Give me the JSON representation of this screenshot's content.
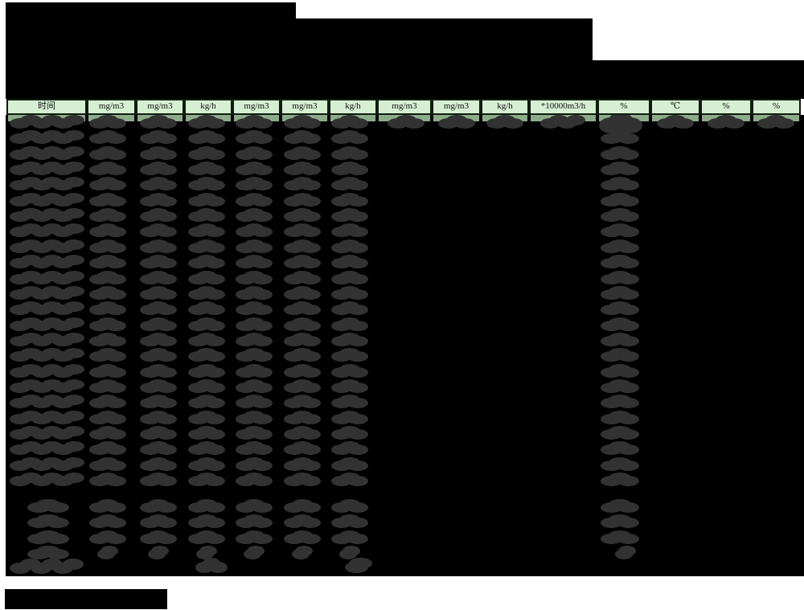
{
  "header": {
    "columns": [
      "时间",
      "mg/m3",
      "mg/m3",
      "kg/h",
      "mg/m3",
      "mg/m3",
      "kg/h",
      "mg/m3",
      "mg/m3",
      "kg/h",
      "*10000m3/h",
      "%",
      "℃",
      "%",
      "%"
    ]
  },
  "table": {
    "main_row_count": 24,
    "summary_row_count": 4,
    "has_final_total_row": true,
    "note": "all cell values, titles and footer text are blacked-out / redacted in the source image"
  },
  "colors": {
    "page_bg": "#ffffff",
    "redaction_black": "#000000",
    "blob_gray": "#323232",
    "header_bg": "#d6eed2",
    "header_border": "#101c10",
    "row1_green": "#8cab88"
  }
}
